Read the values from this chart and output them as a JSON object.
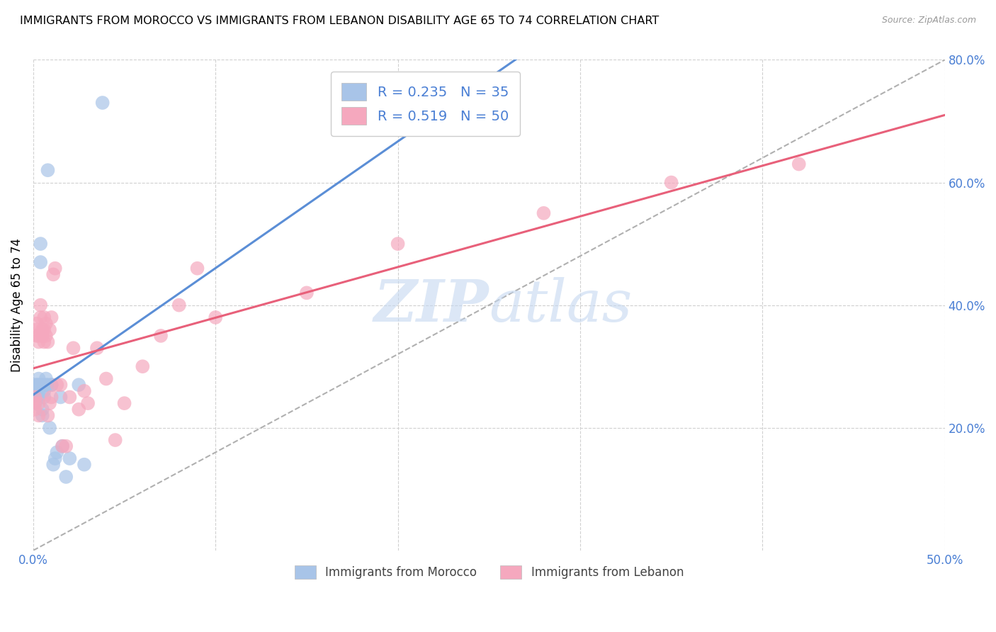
{
  "title": "IMMIGRANTS FROM MOROCCO VS IMMIGRANTS FROM LEBANON DISABILITY AGE 65 TO 74 CORRELATION CHART",
  "source": "Source: ZipAtlas.com",
  "ylabel": "Disability Age 65 to 74",
  "xlim": [
    0.0,
    0.5
  ],
  "ylim": [
    0.0,
    0.8
  ],
  "xtick_positions": [
    0.0,
    0.1,
    0.2,
    0.3,
    0.4,
    0.5
  ],
  "xtick_labels": [
    "0.0%",
    "",
    "",
    "",
    "",
    "50.0%"
  ],
  "ytick_positions": [
    0.2,
    0.4,
    0.6,
    0.8
  ],
  "ytick_labels": [
    "20.0%",
    "40.0%",
    "60.0%",
    "80.0%"
  ],
  "watermark": "ZIPatlas",
  "morocco_color": "#a8c4e8",
  "lebanon_color": "#f5a8be",
  "morocco_line_color": "#5b8ed6",
  "lebanon_line_color": "#e8607a",
  "ref_line_color": "#b0b0b0",
  "tick_label_color": "#4a7fd4",
  "morocco_R": 0.235,
  "morocco_N": 35,
  "lebanon_R": 0.519,
  "lebanon_N": 50,
  "morocco_x": [
    0.001,
    0.001,
    0.001,
    0.002,
    0.002,
    0.002,
    0.003,
    0.003,
    0.003,
    0.003,
    0.004,
    0.004,
    0.004,
    0.005,
    0.005,
    0.005,
    0.006,
    0.006,
    0.007,
    0.007,
    0.008,
    0.008,
    0.009,
    0.01,
    0.01,
    0.011,
    0.012,
    0.013,
    0.015,
    0.016,
    0.018,
    0.02,
    0.025,
    0.028,
    0.038
  ],
  "morocco_y": [
    0.27,
    0.25,
    0.24,
    0.27,
    0.26,
    0.25,
    0.27,
    0.28,
    0.26,
    0.25,
    0.47,
    0.5,
    0.27,
    0.23,
    0.22,
    0.27,
    0.25,
    0.26,
    0.27,
    0.28,
    0.62,
    0.27,
    0.2,
    0.27,
    0.27,
    0.14,
    0.15,
    0.16,
    0.25,
    0.17,
    0.12,
    0.15,
    0.27,
    0.14,
    0.73
  ],
  "lebanon_x": [
    0.001,
    0.001,
    0.001,
    0.002,
    0.002,
    0.002,
    0.003,
    0.003,
    0.003,
    0.003,
    0.004,
    0.004,
    0.005,
    0.005,
    0.006,
    0.006,
    0.006,
    0.007,
    0.007,
    0.008,
    0.008,
    0.009,
    0.009,
    0.01,
    0.01,
    0.011,
    0.012,
    0.013,
    0.015,
    0.016,
    0.018,
    0.02,
    0.022,
    0.025,
    0.028,
    0.03,
    0.035,
    0.04,
    0.045,
    0.05,
    0.06,
    0.07,
    0.08,
    0.09,
    0.1,
    0.15,
    0.2,
    0.28,
    0.35,
    0.42
  ],
  "lebanon_y": [
    0.25,
    0.24,
    0.23,
    0.35,
    0.36,
    0.37,
    0.34,
    0.35,
    0.24,
    0.22,
    0.38,
    0.4,
    0.35,
    0.36,
    0.34,
    0.36,
    0.38,
    0.35,
    0.37,
    0.34,
    0.22,
    0.24,
    0.36,
    0.25,
    0.38,
    0.45,
    0.46,
    0.27,
    0.27,
    0.17,
    0.17,
    0.25,
    0.33,
    0.23,
    0.26,
    0.24,
    0.33,
    0.28,
    0.18,
    0.24,
    0.3,
    0.35,
    0.4,
    0.46,
    0.38,
    0.42,
    0.5,
    0.55,
    0.6,
    0.63
  ]
}
